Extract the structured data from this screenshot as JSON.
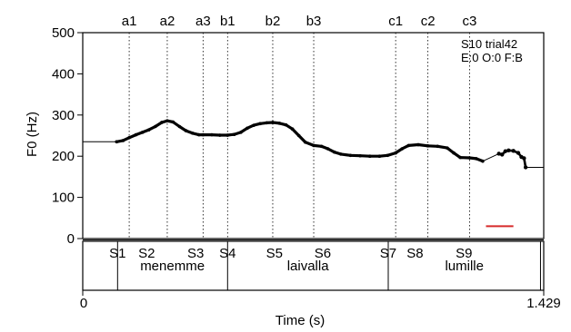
{
  "chart_data": {
    "type": "line",
    "ylabel": "F0 (Hz)",
    "xlabel": "Time (s)",
    "xlim": [
      0,
      1.429
    ],
    "ylim": [
      0,
      500
    ],
    "x_tick_labels": [
      "0",
      "1.429"
    ],
    "y_ticks": [
      0,
      100,
      200,
      300,
      400,
      500
    ],
    "annotation": [
      "S10 trial42",
      "E:0 O:0 F:B"
    ],
    "grid": false,
    "landmarks": [
      {
        "label": "a1",
        "t": 0.144
      },
      {
        "label": "a2",
        "t": 0.262
      },
      {
        "label": "a3",
        "t": 0.373
      },
      {
        "label": "b1",
        "t": 0.449
      },
      {
        "label": "b2",
        "t": 0.589
      },
      {
        "label": "b3",
        "t": 0.716
      },
      {
        "label": "c1",
        "t": 0.97
      },
      {
        "label": "c2",
        "t": 1.07
      },
      {
        "label": "c3",
        "t": 1.199
      }
    ],
    "segments": [
      {
        "label": "S1",
        "t": 0.108
      },
      {
        "label": "S2",
        "t": 0.198
      },
      {
        "label": "S3",
        "t": 0.35
      },
      {
        "label": "S4",
        "t": 0.449
      },
      {
        "label": "S5",
        "t": 0.594
      },
      {
        "label": "S6",
        "t": 0.744
      },
      {
        "label": "S7",
        "t": 0.947
      },
      {
        "label": "S8",
        "t": 1.03
      },
      {
        "label": "S9",
        "t": 1.182
      }
    ],
    "word_boundaries": [
      0.108,
      0.449,
      0.947,
      1.419
    ],
    "words": [
      {
        "label": "menemme",
        "t": 0.278
      },
      {
        "label": "laivalla",
        "t": 0.698
      },
      {
        "label": "lumille",
        "t": 1.183
      }
    ],
    "f0_contour": [
      {
        "t": 0.105,
        "f0": 235
      },
      {
        "t": 0.125,
        "f0": 238
      },
      {
        "t": 0.144,
        "f0": 245
      },
      {
        "t": 0.165,
        "f0": 252
      },
      {
        "t": 0.185,
        "f0": 258
      },
      {
        "t": 0.205,
        "f0": 264
      },
      {
        "t": 0.225,
        "f0": 272
      },
      {
        "t": 0.245,
        "f0": 282
      },
      {
        "t": 0.262,
        "f0": 286
      },
      {
        "t": 0.28,
        "f0": 283
      },
      {
        "t": 0.3,
        "f0": 272
      },
      {
        "t": 0.32,
        "f0": 262
      },
      {
        "t": 0.34,
        "f0": 256
      },
      {
        "t": 0.36,
        "f0": 252
      },
      {
        "t": 0.373,
        "f0": 252
      },
      {
        "t": 0.4,
        "f0": 252
      },
      {
        "t": 0.425,
        "f0": 251
      },
      {
        "t": 0.449,
        "f0": 251
      },
      {
        "t": 0.47,
        "f0": 253
      },
      {
        "t": 0.49,
        "f0": 258
      },
      {
        "t": 0.51,
        "f0": 268
      },
      {
        "t": 0.53,
        "f0": 275
      },
      {
        "t": 0.55,
        "f0": 279
      },
      {
        "t": 0.57,
        "f0": 281
      },
      {
        "t": 0.589,
        "f0": 282
      },
      {
        "t": 0.61,
        "f0": 280
      },
      {
        "t": 0.63,
        "f0": 276
      },
      {
        "t": 0.65,
        "f0": 266
      },
      {
        "t": 0.67,
        "f0": 250
      },
      {
        "t": 0.69,
        "f0": 234
      },
      {
        "t": 0.716,
        "f0": 226
      },
      {
        "t": 0.74,
        "f0": 224
      },
      {
        "t": 0.76,
        "f0": 218
      },
      {
        "t": 0.78,
        "f0": 210
      },
      {
        "t": 0.8,
        "f0": 205
      },
      {
        "t": 0.83,
        "f0": 202
      },
      {
        "t": 0.86,
        "f0": 201
      },
      {
        "t": 0.89,
        "f0": 200
      },
      {
        "t": 0.92,
        "f0": 200
      },
      {
        "t": 0.945,
        "f0": 202
      },
      {
        "t": 0.97,
        "f0": 208
      },
      {
        "t": 0.99,
        "f0": 218
      },
      {
        "t": 1.01,
        "f0": 226
      },
      {
        "t": 1.04,
        "f0": 228
      },
      {
        "t": 1.07,
        "f0": 225
      },
      {
        "t": 1.1,
        "f0": 224
      },
      {
        "t": 1.13,
        "f0": 220
      },
      {
        "t": 1.15,
        "f0": 208
      },
      {
        "t": 1.17,
        "f0": 197
      },
      {
        "t": 1.199,
        "f0": 196
      },
      {
        "t": 1.22,
        "f0": 194
      },
      {
        "t": 1.24,
        "f0": 188
      }
    ],
    "f0_tail": [
      {
        "t": 1.29,
        "f0": 206
      },
      {
        "t": 1.3,
        "f0": 204
      },
      {
        "t": 1.31,
        "f0": 212
      },
      {
        "t": 1.32,
        "f0": 214
      },
      {
        "t": 1.335,
        "f0": 213
      },
      {
        "t": 1.35,
        "f0": 208
      },
      {
        "t": 1.36,
        "f0": 198
      },
      {
        "t": 1.368,
        "f0": 195
      },
      {
        "t": 1.373,
        "f0": 173
      }
    ],
    "f0_reference_lines": [
      {
        "t0": 0.0,
        "t1": 0.105,
        "f0": 235
      },
      {
        "t0": 1.373,
        "t1": 1.429,
        "f0": 173
      }
    ],
    "scale_bar": {
      "t0": 1.25,
      "t1": 1.335,
      "f0": 30,
      "color": "#d62a2a"
    },
    "colors": {
      "contour": "#000000",
      "scale_bar": "#d62a2a"
    }
  }
}
